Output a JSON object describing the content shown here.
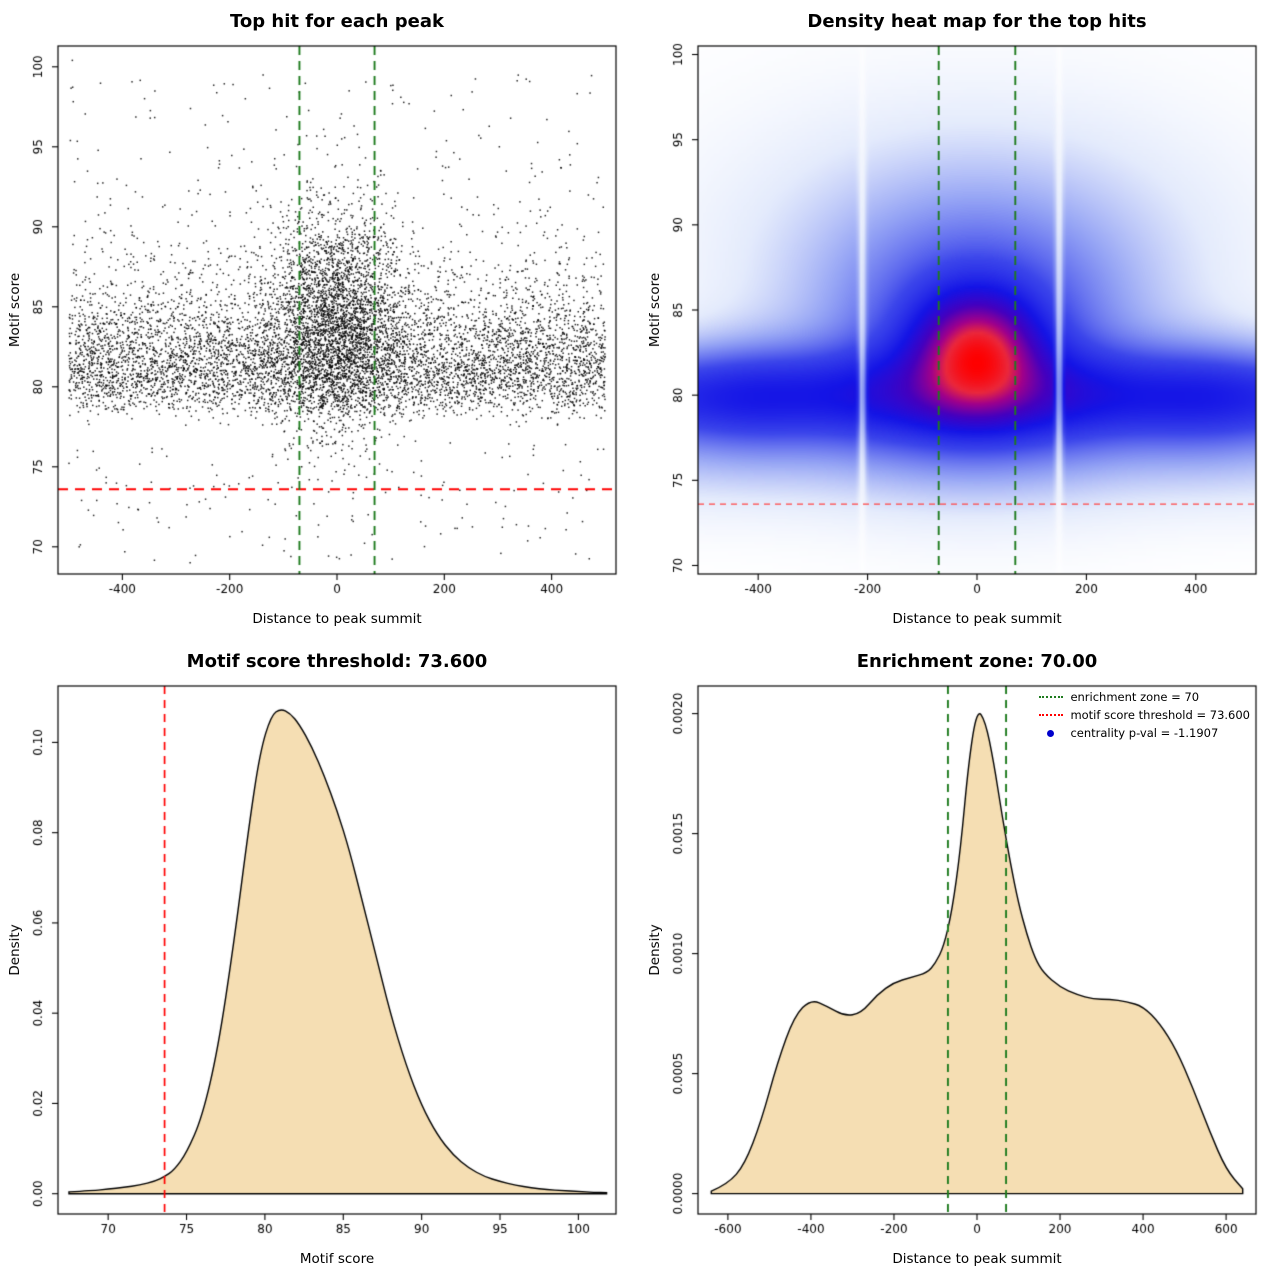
{
  "figure": {
    "background": "#FFFFFF"
  },
  "chart_data": [
    {
      "type": "scatter",
      "title": "Top hit for each peak",
      "xlabel": "Distance to peak summit",
      "ylabel": "Motif score",
      "xlim": [
        -520,
        520
      ],
      "ylim": [
        68.3,
        101.3
      ],
      "xticks": {
        "values": [
          -400,
          -200,
          0,
          200,
          400
        ],
        "labels": [
          "-400",
          "-200",
          "0",
          "200",
          "400"
        ]
      },
      "yticks": {
        "values": [
          70,
          75,
          80,
          85,
          90,
          95,
          100
        ],
        "labels": [
          "70",
          "75",
          "80",
          "85",
          "90",
          "95",
          "100"
        ]
      },
      "point_color": "#000000",
      "generator": {
        "seed": 20,
        "n": 9500,
        "central_fraction": 0.3,
        "central_x_sd": 62,
        "central_y_mean": 83.3,
        "central_y_sd": 3.3,
        "bg_x_min": -500,
        "bg_x_max": 500,
        "bg_y_base": 76.2,
        "bg_log_mu": 1.72,
        "bg_log_sd": 0.42,
        "low_fraction": 0.016,
        "low_y_min": 69,
        "low_y_max": 76.5,
        "high_fraction": 0.012
      },
      "lines": [
        {
          "name": "motif-score-threshold-line",
          "orient": "h",
          "at": 73.6,
          "color": "#FF0000",
          "dash": [
            10,
            7
          ],
          "width": 1.9
        },
        {
          "name": "enrichment-zone-left-line",
          "orient": "v",
          "at": -70,
          "color": "#1E7B1E",
          "dash": [
            9,
            6
          ],
          "width": 1.9
        },
        {
          "name": "enrichment-zone-right-line",
          "orient": "v",
          "at": 70,
          "color": "#1E7B1E",
          "dash": [
            9,
            6
          ],
          "width": 1.9
        }
      ]
    },
    {
      "type": "heatmap",
      "title": "Density heat map for the top hits",
      "xlabel": "Distance to peak summit",
      "ylabel": "Motif score",
      "xlim": [
        -510,
        510
      ],
      "ylim": [
        69.5,
        100.5
      ],
      "xticks": {
        "values": [
          -400,
          -200,
          0,
          200,
          400
        ],
        "labels": [
          "-400",
          "-200",
          "0",
          "200",
          "400"
        ]
      },
      "yticks": {
        "values": [
          70,
          75,
          80,
          85,
          90,
          95,
          100
        ],
        "labels": [
          "70",
          "75",
          "80",
          "85",
          "90",
          "95",
          "100"
        ]
      },
      "gamma": 0.8,
      "hotspot": {
        "x": 0,
        "y": 82.6
      },
      "kernels": [
        {
          "x": 0,
          "sx": 99999,
          "y": 80,
          "sy": 1.9,
          "amp": 0.55
        },
        {
          "x": 0,
          "sx": 185,
          "y": 83,
          "sy": 4.6,
          "amp": 0.5
        },
        {
          "x": 0,
          "sx": 72,
          "y": 82.6,
          "sy": 2.2,
          "amp": 1.0
        },
        {
          "x": 0,
          "sx": 280,
          "y": 89,
          "sy": 5.0,
          "amp": 0.18
        },
        {
          "x": 0,
          "sx": 99999,
          "y": 76.5,
          "sy": 2.2,
          "amp": 0.13
        },
        {
          "x": -420,
          "sx": 90,
          "y": 80,
          "sy": 2.6,
          "amp": 0.12
        },
        {
          "x": 420,
          "sx": 90,
          "y": 80,
          "sy": 2.6,
          "amp": 0.12
        }
      ],
      "white_streaks_x": [
        -210,
        150
      ],
      "colormap": [
        {
          "t": 0.0,
          "c": [
            255,
            255,
            255
          ]
        },
        {
          "t": 0.08,
          "c": [
            228,
            235,
            252
          ]
        },
        {
          "t": 0.2,
          "c": [
            150,
            165,
            245
          ]
        },
        {
          "t": 0.35,
          "c": [
            60,
            70,
            235
          ]
        },
        {
          "t": 0.5,
          "c": [
            20,
            20,
            230
          ]
        },
        {
          "t": 0.65,
          "c": [
            70,
            0,
            190
          ]
        },
        {
          "t": 0.78,
          "c": [
            160,
            0,
            140
          ]
        },
        {
          "t": 0.88,
          "c": [
            235,
            40,
            60
          ]
        },
        {
          "t": 1.0,
          "c": [
            255,
            0,
            0
          ]
        }
      ],
      "lines": [
        {
          "name": "motif-score-threshold-line",
          "orient": "h",
          "at": 73.6,
          "color": "#FF4444",
          "dash": [
            6,
            5
          ],
          "width": 1.3
        },
        {
          "name": "enrichment-zone-left-line",
          "orient": "v",
          "at": -70,
          "color": "#1E7B1E",
          "dash": [
            9,
            6
          ],
          "width": 1.9
        },
        {
          "name": "enrichment-zone-right-line",
          "orient": "v",
          "at": 70,
          "color": "#1E7B1E",
          "dash": [
            9,
            6
          ],
          "width": 1.9
        }
      ]
    },
    {
      "type": "area",
      "title": "Motif score threshold: 73.600",
      "xlabel": "Motif score",
      "ylabel": "Density",
      "xlim": [
        66.8,
        102.4
      ],
      "ylim": [
        -0.0045,
        0.1125
      ],
      "xticks": {
        "values": [
          70,
          75,
          80,
          85,
          90,
          95,
          100
        ],
        "labels": [
          "70",
          "75",
          "80",
          "85",
          "90",
          "95",
          "100"
        ]
      },
      "yticks": {
        "values": [
          0,
          0.02,
          0.04,
          0.06,
          0.08,
          0.1
        ],
        "labels": [
          "0.00",
          "0.02",
          "0.04",
          "0.06",
          "0.08",
          "0.10"
        ]
      },
      "fill": "#F5DEB3",
      "x": [
        67.5,
        69,
        70,
        71,
        72,
        73,
        73.6,
        74.2,
        75,
        76,
        77,
        78,
        79,
        79.7,
        80.4,
        81,
        81.6,
        82.2,
        83,
        83.8,
        84.6,
        85.4,
        86.2,
        87,
        88,
        89,
        90,
        91,
        92,
        93,
        94,
        95,
        96,
        97,
        98,
        99,
        100,
        101,
        101.8
      ],
      "y": [
        0.0004,
        0.0007,
        0.001,
        0.0014,
        0.0019,
        0.0028,
        0.0038,
        0.0052,
        0.009,
        0.017,
        0.032,
        0.055,
        0.082,
        0.098,
        0.106,
        0.1075,
        0.1065,
        0.104,
        0.099,
        0.0925,
        0.085,
        0.076,
        0.065,
        0.054,
        0.04,
        0.0285,
        0.0195,
        0.013,
        0.0086,
        0.0057,
        0.0038,
        0.0027,
        0.0019,
        0.0013,
        0.0009,
        0.0007,
        0.0005,
        0.0003,
        0.0002
      ],
      "lines": [
        {
          "name": "motif-score-threshold-line",
          "orient": "v",
          "at": 73.6,
          "color": "#FF0000",
          "dash": [
            8,
            6
          ],
          "width": 1.7
        }
      ]
    },
    {
      "type": "area",
      "title": "Enrichment zone: 70.00",
      "xlabel": "Distance to peak summit",
      "ylabel": "Density",
      "xlim": [
        -672,
        672
      ],
      "ylim": [
        -8.5e-05,
        0.002115
      ],
      "xticks": {
        "values": [
          -600,
          -400,
          -200,
          0,
          200,
          400,
          600
        ],
        "labels": [
          "-600",
          "-400",
          "-200",
          "0",
          "200",
          "400",
          "600"
        ]
      },
      "yticks": {
        "values": [
          0,
          0.0005,
          0.001,
          0.0015,
          0.002
        ],
        "labels": [
          "0.0000",
          "0.0005",
          "0.0010",
          "0.0015",
          "0.0020"
        ]
      },
      "fill": "#F5DEB3",
      "x": [
        -640,
        -600,
        -560,
        -520,
        -480,
        -440,
        -400,
        -360,
        -320,
        -280,
        -240,
        -200,
        -160,
        -120,
        -100,
        -80,
        -60,
        -40,
        -20,
        0,
        20,
        40,
        60,
        80,
        100,
        120,
        140,
        160,
        200,
        240,
        280,
        320,
        360,
        400,
        440,
        480,
        520,
        560,
        600,
        640
      ],
      "y": [
        1e-05,
        4e-05,
        0.00012,
        0.0003,
        0.00055,
        0.00074,
        0.00081,
        0.00078,
        0.00074,
        0.00075,
        0.00083,
        0.00088,
        0.0009,
        0.00092,
        0.00096,
        0.00103,
        0.00118,
        0.00143,
        0.0018,
        0.00202,
        0.00197,
        0.0018,
        0.00158,
        0.00138,
        0.00121,
        0.00108,
        0.00098,
        0.00092,
        0.00086,
        0.00083,
        0.00081,
        0.00081,
        0.0008,
        0.00078,
        0.00071,
        0.0006,
        0.00044,
        0.00026,
        0.0001,
        2e-05
      ],
      "lines": [
        {
          "name": "enrichment-zone-left-line",
          "orient": "v",
          "at": -70,
          "color": "#1E7B1E",
          "dash": [
            8,
            6
          ],
          "width": 1.9
        },
        {
          "name": "enrichment-zone-right-line",
          "orient": "v",
          "at": 70,
          "color": "#1E7B1E",
          "dash": [
            8,
            6
          ],
          "width": 1.9
        }
      ],
      "legend": {
        "items": [
          {
            "label": "enrichment zone = 70",
            "marker": "dotted-line",
            "color": "#1E7B1E"
          },
          {
            "label": "motif score threshold = 73.600",
            "marker": "dotted-line",
            "color": "#FF0000"
          },
          {
            "label": "centrality p-val = -1.1907",
            "marker": "dot",
            "color": "#0000CC"
          }
        ]
      }
    }
  ]
}
